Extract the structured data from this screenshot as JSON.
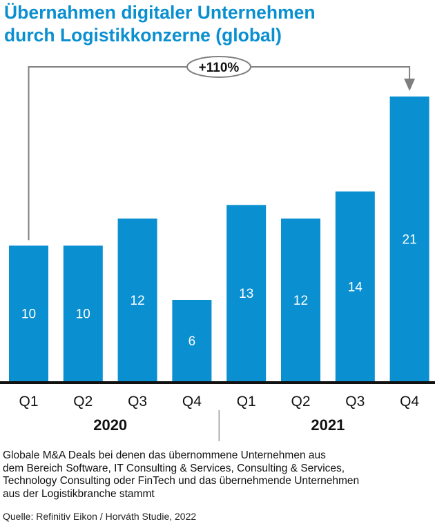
{
  "title_line1": "Übernahmen digitaler Unternehmen",
  "title_line2": "durch Logistikkonzerne (global)",
  "annotation": "+110%",
  "footnote_lines": [
    "Globale M&A Deals bei denen das übernommene Unternehmen aus",
    "dem Bereich Software, IT Consulting & Services, Consulting & Services,",
    "Technology Consulting oder FinTech und das übernehmende Unternehmen",
    "aus der Logistikbranche stammt"
  ],
  "source": "Quelle: Refinitiv Eikon / Horváth Studie, 2022",
  "colors": {
    "title": "#0a8fd1",
    "bar": "#0a8fd1",
    "bar_label": "#ffffff",
    "arrow": "#7f7f7f",
    "axis": "#111111"
  },
  "chart_data": {
    "type": "bar",
    "title": "Übernahmen digitaler Unternehmen durch Logistikkonzerne (global)",
    "categories": [
      "Q1",
      "Q2",
      "Q3",
      "Q4",
      "Q1",
      "Q2",
      "Q3",
      "Q4"
    ],
    "groups": [
      {
        "label": "2020",
        "categories": [
          "Q1",
          "Q2",
          "Q3",
          "Q4"
        ]
      },
      {
        "label": "2021",
        "categories": [
          "Q1",
          "Q2",
          "Q3",
          "Q4"
        ]
      }
    ],
    "values": [
      10,
      10,
      12,
      6,
      13,
      12,
      14,
      21
    ],
    "data_labels": [
      "10",
      "10",
      "12",
      "6",
      "13",
      "12",
      "14",
      "21"
    ],
    "ylim": [
      0,
      21
    ],
    "grid": false,
    "legend": "none",
    "annotation": {
      "text": "+110%",
      "from_index": 0,
      "to_index": 7
    }
  }
}
